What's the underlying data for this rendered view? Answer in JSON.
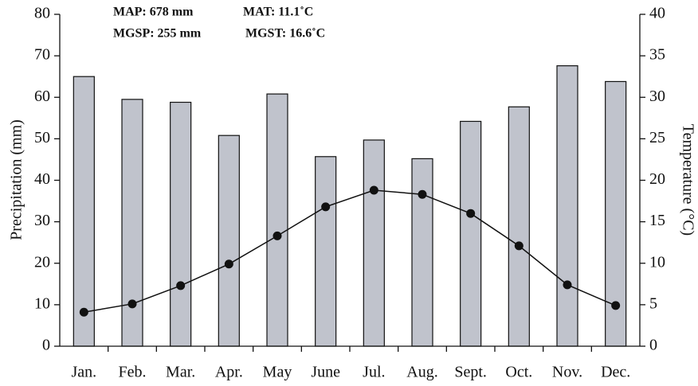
{
  "chart_data": {
    "type": "bar",
    "annotations": [
      "MAP: 678 mm",
      "MAT: 11.1˚C",
      "MGSP: 255 mm",
      "MGST: 16.6˚C"
    ],
    "ylabel": "Precipitation (mm)",
    "y2label": "Temperature (°C)",
    "categories": [
      "Jan.",
      "Feb.",
      "Mar.",
      "Apr.",
      "May",
      "June",
      "Jul.",
      "Aug.",
      "Sept.",
      "Oct.",
      "Nov.",
      "Dec."
    ],
    "series": [
      {
        "type": "bar",
        "color": "#c0c3cc",
        "values": [
          65,
          59.5,
          58.8,
          50.8,
          60.8,
          45.7,
          49.7,
          45.2,
          54.2,
          57.7,
          67.6,
          63.8
        ]
      },
      {
        "type": "line",
        "color": "#111111",
        "axis": "y2",
        "values": [
          4.1,
          5.1,
          7.3,
          9.9,
          13.3,
          16.8,
          18.8,
          18.3,
          16.0,
          12.1,
          7.4,
          4.9
        ]
      }
    ],
    "ylim": [
      0,
      80
    ],
    "yticks": [
      0,
      10,
      20,
      30,
      40,
      50,
      60,
      70,
      80
    ],
    "y2lim": [
      0,
      40
    ],
    "y2ticks": [
      0,
      5,
      10,
      15,
      20,
      25,
      30,
      35,
      40
    ]
  }
}
